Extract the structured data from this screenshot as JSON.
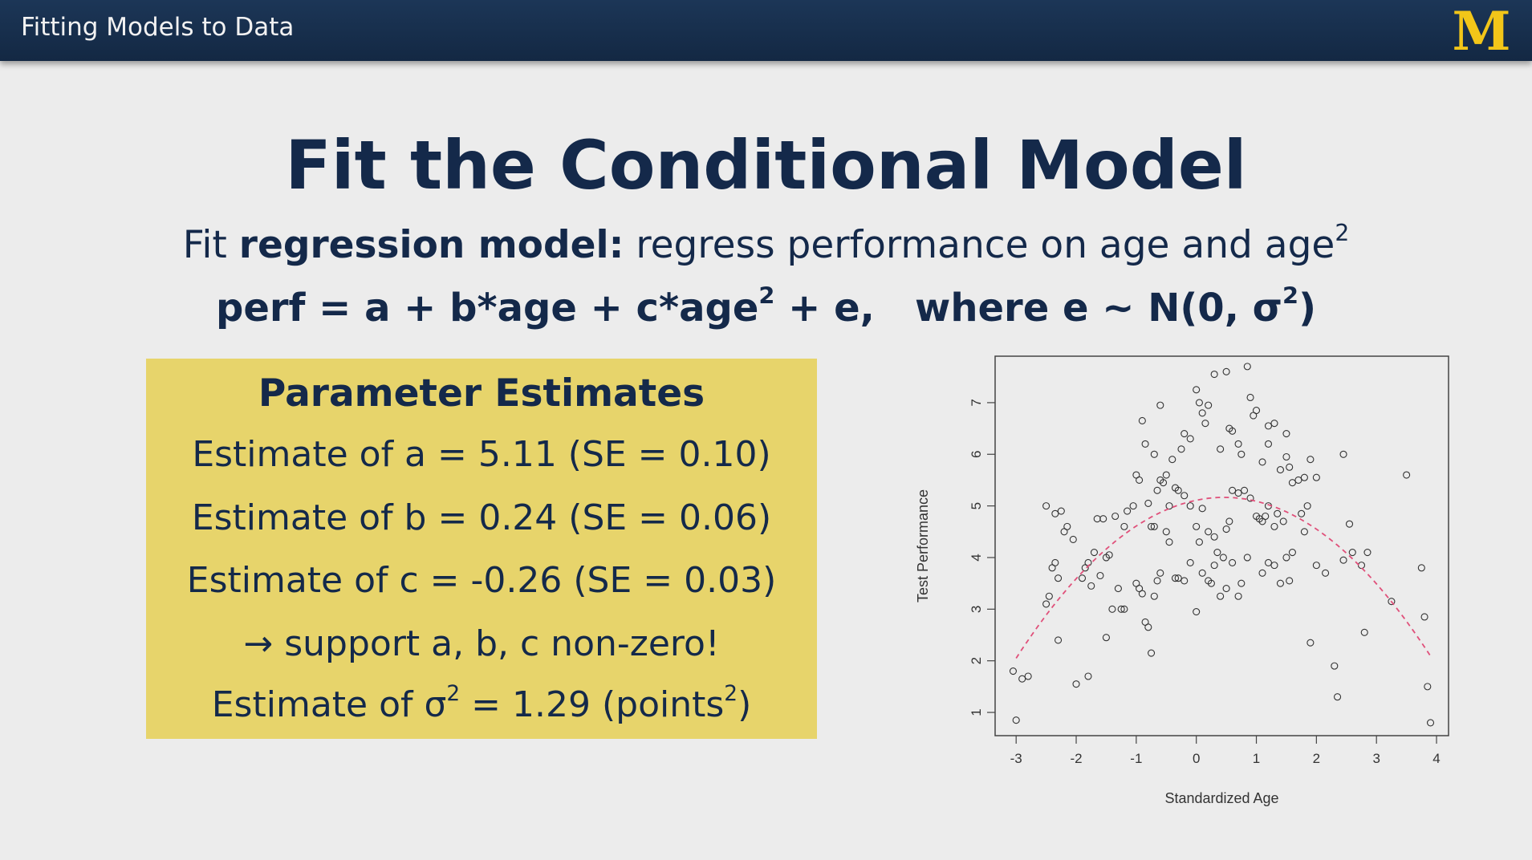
{
  "header": {
    "title": "Fitting Models to Data",
    "logo_text": "M",
    "logo_color": "#f2c619"
  },
  "slide": {
    "title": "Fit the Conditional Model",
    "subtitle_prefix": "Fit ",
    "subtitle_bold": "regression model:",
    "subtitle_rest": " regress performance on age and age",
    "subtitle_sup": "2",
    "equation_part1": "perf = a + b*age + c*age",
    "equation_sup1": "2",
    "equation_part2": " + e,   where e ~ N(0, σ",
    "equation_sup2": "2",
    "equation_part3": ")"
  },
  "params": {
    "title": "Parameter Estimates",
    "line_a": "Estimate of a = 5.11 (SE = 0.10)",
    "line_b": "Estimate of b = 0.24 (SE = 0.06)",
    "line_c": "Estimate of c = -0.26 (SE = 0.03)",
    "conclusion": "→ support a, b, c non-zero!",
    "sigma_prefix": "Estimate of σ",
    "sigma_sup": "2",
    "sigma_mid": " = 1.29 (points",
    "sigma_sup2": "2",
    "sigma_end": ")",
    "box_color": "#e7d46b"
  },
  "chart_data": {
    "type": "scatter",
    "xlabel": "Standardized Age",
    "ylabel": "Test Performance",
    "xlim": [
      -3.35,
      4.2
    ],
    "ylim": [
      0.55,
      7.9
    ],
    "xticks": [
      -3,
      -2,
      -1,
      0,
      1,
      2,
      3,
      4
    ],
    "yticks": [
      1,
      2,
      3,
      4,
      5,
      6,
      7
    ],
    "grid": false,
    "fit_curve": {
      "a": 5.11,
      "b": 0.24,
      "c": -0.26,
      "x_range": [
        -3,
        3.9
      ],
      "style": "dashed",
      "color": "#e0507a"
    },
    "points": [
      [
        -3.0,
        0.85
      ],
      [
        -3.05,
        1.8
      ],
      [
        -2.9,
        1.65
      ],
      [
        -2.8,
        1.7
      ],
      [
        -2.5,
        3.1
      ],
      [
        -2.45,
        3.25
      ],
      [
        -2.4,
        3.8
      ],
      [
        -2.35,
        3.9
      ],
      [
        -2.3,
        3.6
      ],
      [
        -2.5,
        5.0
      ],
      [
        -2.35,
        4.85
      ],
      [
        -2.25,
        4.9
      ],
      [
        -2.2,
        4.5
      ],
      [
        -2.15,
        4.6
      ],
      [
        -2.05,
        4.35
      ],
      [
        -2.3,
        2.4
      ],
      [
        -2.0,
        1.55
      ],
      [
        -1.8,
        1.7
      ],
      [
        -1.9,
        3.6
      ],
      [
        -1.85,
        3.8
      ],
      [
        -1.8,
        3.9
      ],
      [
        -1.75,
        3.45
      ],
      [
        -1.7,
        4.1
      ],
      [
        -1.65,
        4.75
      ],
      [
        -1.55,
        4.75
      ],
      [
        -1.5,
        4.0
      ],
      [
        -1.45,
        4.05
      ],
      [
        -1.4,
        3.0
      ],
      [
        -1.35,
        4.8
      ],
      [
        -1.3,
        3.4
      ],
      [
        -1.25,
        3.0
      ],
      [
        -1.2,
        3.0
      ],
      [
        -1.5,
        2.45
      ],
      [
        -1.6,
        3.65
      ],
      [
        -1.2,
        4.6
      ],
      [
        -1.15,
        4.9
      ],
      [
        -1.05,
        5.0
      ],
      [
        -1.0,
        5.6
      ],
      [
        -0.95,
        5.5
      ],
      [
        -0.9,
        6.65
      ],
      [
        -0.85,
        6.2
      ],
      [
        -0.8,
        5.05
      ],
      [
        -0.75,
        4.6
      ],
      [
        -0.7,
        4.6
      ],
      [
        -0.65,
        5.3
      ],
      [
        -0.6,
        5.5
      ],
      [
        -0.55,
        5.45
      ],
      [
        -0.5,
        5.6
      ],
      [
        -0.45,
        5.0
      ],
      [
        -0.4,
        5.9
      ],
      [
        -0.35,
        5.35
      ],
      [
        -0.3,
        5.3
      ],
      [
        -1.0,
        3.5
      ],
      [
        -0.95,
        3.4
      ],
      [
        -0.9,
        3.3
      ],
      [
        -0.85,
        2.75
      ],
      [
        -0.8,
        2.65
      ],
      [
        -0.75,
        2.15
      ],
      [
        -0.7,
        3.25
      ],
      [
        -0.65,
        3.55
      ],
      [
        -0.6,
        3.7
      ],
      [
        -0.5,
        4.5
      ],
      [
        -0.45,
        4.3
      ],
      [
        -0.35,
        3.6
      ],
      [
        -0.7,
        6.0
      ],
      [
        -0.6,
        6.95
      ],
      [
        -0.25,
        6.1
      ],
      [
        -0.2,
        6.4
      ],
      [
        -0.1,
        6.3
      ],
      [
        0.0,
        7.25
      ],
      [
        0.05,
        7.0
      ],
      [
        0.1,
        6.8
      ],
      [
        0.15,
        6.6
      ],
      [
        0.2,
        6.95
      ],
      [
        0.3,
        7.55
      ],
      [
        0.4,
        6.1
      ],
      [
        0.5,
        7.6
      ],
      [
        0.55,
        6.5
      ],
      [
        0.6,
        6.45
      ],
      [
        0.7,
        6.2
      ],
      [
        0.75,
        6.0
      ],
      [
        0.85,
        7.7
      ],
      [
        0.9,
        7.1
      ],
      [
        0.95,
        6.75
      ],
      [
        1.0,
        6.85
      ],
      [
        1.1,
        5.85
      ],
      [
        1.2,
        6.55
      ],
      [
        1.3,
        6.6
      ],
      [
        1.4,
        5.7
      ],
      [
        1.5,
        5.95
      ],
      [
        1.55,
        5.75
      ],
      [
        1.6,
        5.45
      ],
      [
        1.7,
        5.5
      ],
      [
        1.8,
        5.55
      ],
      [
        1.5,
        6.4
      ],
      [
        -0.2,
        5.2
      ],
      [
        -0.1,
        5.0
      ],
      [
        0.0,
        4.6
      ],
      [
        0.05,
        4.3
      ],
      [
        0.1,
        4.95
      ],
      [
        0.2,
        4.5
      ],
      [
        0.3,
        4.4
      ],
      [
        0.35,
        4.1
      ],
      [
        0.45,
        4.0
      ],
      [
        0.5,
        4.55
      ],
      [
        0.55,
        4.7
      ],
      [
        0.6,
        5.3
      ],
      [
        0.7,
        5.25
      ],
      [
        0.8,
        5.3
      ],
      [
        0.9,
        5.15
      ],
      [
        1.0,
        4.8
      ],
      [
        1.05,
        4.75
      ],
      [
        1.1,
        4.7
      ],
      [
        1.15,
        4.8
      ],
      [
        1.2,
        5.0
      ],
      [
        1.3,
        4.6
      ],
      [
        1.35,
        4.85
      ],
      [
        1.45,
        4.7
      ],
      [
        1.5,
        4.0
      ],
      [
        1.6,
        4.1
      ],
      [
        1.75,
        4.85
      ],
      [
        1.8,
        4.5
      ],
      [
        1.85,
        5.0
      ],
      [
        -0.3,
        3.6
      ],
      [
        -0.2,
        3.55
      ],
      [
        -0.1,
        3.9
      ],
      [
        0.0,
        2.95
      ],
      [
        0.1,
        3.7
      ],
      [
        0.2,
        3.55
      ],
      [
        0.25,
        3.5
      ],
      [
        0.3,
        3.85
      ],
      [
        0.4,
        3.25
      ],
      [
        0.5,
        3.4
      ],
      [
        0.6,
        3.9
      ],
      [
        0.7,
        3.25
      ],
      [
        0.75,
        3.5
      ],
      [
        0.85,
        4.0
      ],
      [
        1.1,
        3.7
      ],
      [
        1.2,
        3.9
      ],
      [
        1.3,
        3.85
      ],
      [
        1.4,
        3.5
      ],
      [
        1.55,
        3.55
      ],
      [
        1.9,
        2.35
      ],
      [
        2.0,
        3.85
      ],
      [
        2.15,
        3.7
      ],
      [
        2.3,
        1.9
      ],
      [
        2.35,
        1.3
      ],
      [
        2.45,
        3.95
      ],
      [
        2.55,
        4.65
      ],
      [
        2.6,
        4.1
      ],
      [
        2.75,
        3.85
      ],
      [
        2.85,
        4.1
      ],
      [
        2.8,
        2.55
      ],
      [
        3.25,
        3.15
      ],
      [
        3.5,
        5.6
      ],
      [
        3.75,
        3.8
      ],
      [
        3.8,
        2.85
      ],
      [
        3.85,
        1.5
      ],
      [
        3.9,
        0.8
      ],
      [
        2.45,
        6.0
      ],
      [
        2.0,
        5.55
      ],
      [
        1.9,
        5.9
      ],
      [
        1.2,
        6.2
      ]
    ]
  }
}
